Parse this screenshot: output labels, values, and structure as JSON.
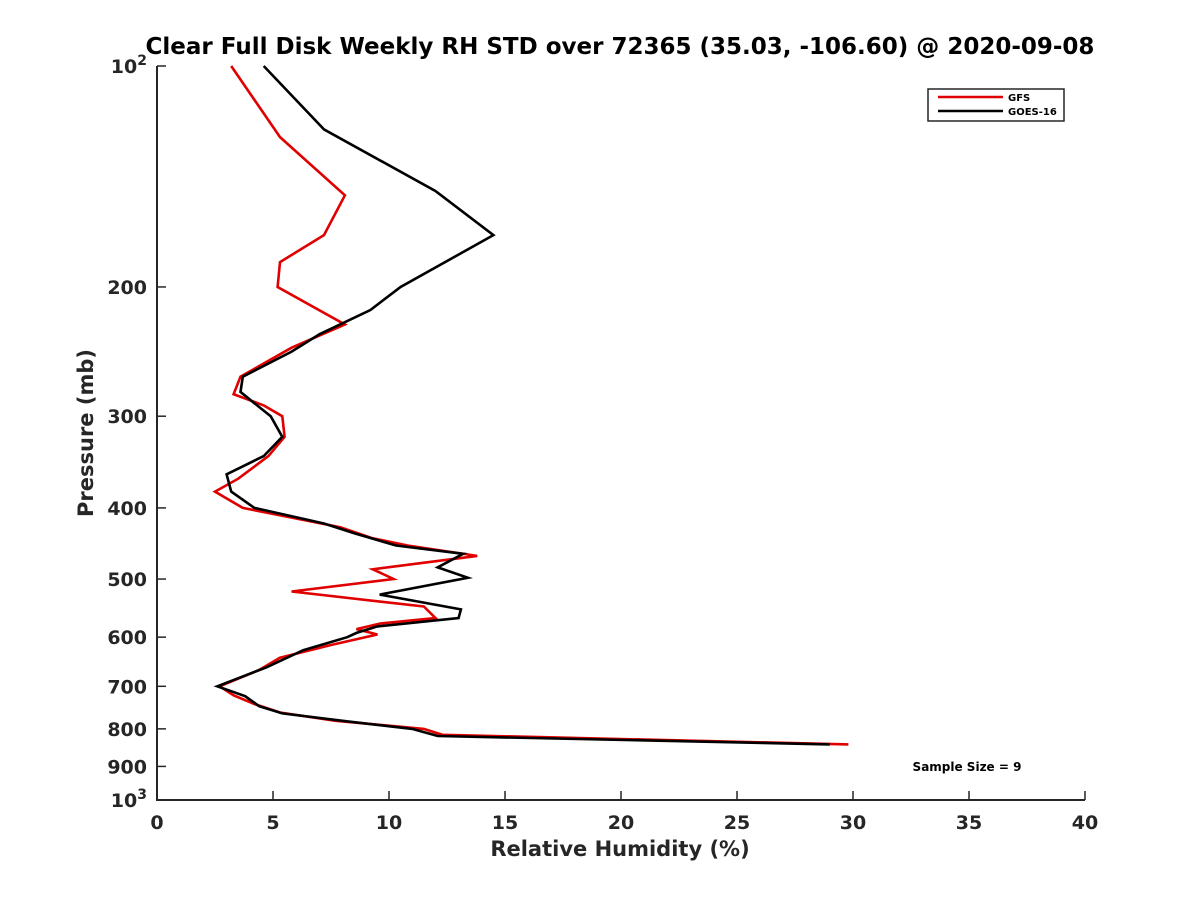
{
  "chart_data": {
    "type": "line",
    "title": "Clear Full Disk Weekly RH STD over 72365 (35.03, -106.60) @ 2020-09-08",
    "xlabel": "Relative Humidity (%)",
    "ylabel": "Pressure (mb)",
    "xlim": [
      0,
      40
    ],
    "ylim": [
      100,
      1000
    ],
    "y_scale": "log",
    "y_reversed": true,
    "grid": false,
    "legend_position": "top-right",
    "x_ticks": [
      "0",
      "5",
      "10",
      "15",
      "20",
      "25",
      "30",
      "35",
      "40"
    ],
    "y_ticks": [
      {
        "value": 100,
        "base": "10",
        "exp": "2"
      },
      {
        "value": 200,
        "base": "200",
        "exp": ""
      },
      {
        "value": 300,
        "base": "300",
        "exp": ""
      },
      {
        "value": 400,
        "base": "400",
        "exp": ""
      },
      {
        "value": 500,
        "base": "500",
        "exp": ""
      },
      {
        "value": 600,
        "base": "600",
        "exp": ""
      },
      {
        "value": 700,
        "base": "700",
        "exp": ""
      },
      {
        "value": 800,
        "base": "800",
        "exp": ""
      },
      {
        "value": 900,
        "base": "900",
        "exp": ""
      },
      {
        "value": 1000,
        "base": "10",
        "exp": "3"
      }
    ],
    "annotation": "Sample Size = 9",
    "series": [
      {
        "name": "GFS",
        "color": "#e00000",
        "points": [
          [
            3.2,
            100
          ],
          [
            5.3,
            125
          ],
          [
            8.1,
            150
          ],
          [
            7.2,
            170
          ],
          [
            5.3,
            185
          ],
          [
            5.2,
            200
          ],
          [
            8.1,
            225
          ],
          [
            5.8,
            242
          ],
          [
            3.6,
            265
          ],
          [
            3.3,
            280
          ],
          [
            4.6,
            290
          ],
          [
            5.4,
            300
          ],
          [
            5.5,
            320
          ],
          [
            4.8,
            340
          ],
          [
            3.5,
            365
          ],
          [
            2.5,
            380
          ],
          [
            3.7,
            400
          ],
          [
            7.9,
            425
          ],
          [
            9.3,
            440
          ],
          [
            10.8,
            450
          ],
          [
            13.8,
            465
          ],
          [
            9.3,
            485
          ],
          [
            10.2,
            500
          ],
          [
            5.8,
            520
          ],
          [
            11.5,
            545
          ],
          [
            12.0,
            565
          ],
          [
            9.6,
            575
          ],
          [
            8.6,
            585
          ],
          [
            9.5,
            595
          ],
          [
            7.5,
            615
          ],
          [
            5.3,
            640
          ],
          [
            4.4,
            665
          ],
          [
            2.7,
            700
          ],
          [
            3.3,
            720
          ],
          [
            4.2,
            740
          ],
          [
            5.3,
            760
          ],
          [
            7.7,
            780
          ],
          [
            11.5,
            800
          ],
          [
            12.3,
            815
          ],
          [
            29.8,
            840
          ]
        ]
      },
      {
        "name": "GOES-16",
        "color": "#000000",
        "points": [
          [
            4.6,
            100
          ],
          [
            7.2,
            122
          ],
          [
            12.0,
            148
          ],
          [
            14.5,
            170
          ],
          [
            10.5,
            200
          ],
          [
            9.2,
            215
          ],
          [
            7.0,
            232
          ],
          [
            5.8,
            245
          ],
          [
            3.7,
            265
          ],
          [
            3.6,
            278
          ],
          [
            4.2,
            288
          ],
          [
            4.9,
            300
          ],
          [
            5.4,
            320
          ],
          [
            4.6,
            340
          ],
          [
            3.0,
            360
          ],
          [
            3.2,
            380
          ],
          [
            4.2,
            400
          ],
          [
            7.2,
            420
          ],
          [
            8.5,
            433
          ],
          [
            10.3,
            450
          ],
          [
            13.2,
            462
          ],
          [
            12.1,
            482
          ],
          [
            13.4,
            498
          ],
          [
            9.6,
            525
          ],
          [
            13.1,
            550
          ],
          [
            13.0,
            565
          ],
          [
            9.5,
            580
          ],
          [
            8.6,
            592
          ],
          [
            8.2,
            600
          ],
          [
            6.3,
            625
          ],
          [
            4.7,
            660
          ],
          [
            2.6,
            700
          ],
          [
            3.8,
            722
          ],
          [
            4.4,
            745
          ],
          [
            5.4,
            762
          ],
          [
            8.0,
            780
          ],
          [
            11.0,
            800
          ],
          [
            12.1,
            818
          ],
          [
            29.0,
            840
          ]
        ]
      }
    ]
  }
}
